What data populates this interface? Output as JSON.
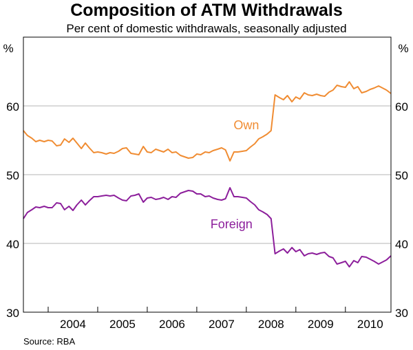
{
  "chart_data": {
    "type": "line",
    "title": "Composition of ATM Withdrawals",
    "subtitle": "Per cent of domestic withdrawals, seasonally adjusted",
    "source": "Source: RBA",
    "ylabel_left": "%",
    "ylabel_right": "%",
    "ylim": [
      30,
      70
    ],
    "yticks": [
      "30",
      "40",
      "50",
      "60"
    ],
    "xlim": [
      2003.5,
      2010.92
    ],
    "xticks": [
      "2004",
      "2005",
      "2006",
      "2007",
      "2008",
      "2009",
      "2010"
    ],
    "grid": true,
    "colors": {
      "own": "#f08c32",
      "foreign": "#8c1e9b",
      "grid": "#b4b4b4",
      "axis": "#000000"
    },
    "series": [
      {
        "name": "Own",
        "label": "Own",
        "x": [
          2003.5,
          2003.58,
          2003.67,
          2003.75,
          2003.83,
          2003.92,
          2004.0,
          2004.08,
          2004.17,
          2004.25,
          2004.33,
          2004.42,
          2004.5,
          2004.58,
          2004.67,
          2004.75,
          2004.83,
          2004.92,
          2005.0,
          2005.08,
          2005.17,
          2005.25,
          2005.33,
          2005.42,
          2005.5,
          2005.58,
          2005.67,
          2005.75,
          2005.83,
          2005.92,
          2006.0,
          2006.08,
          2006.17,
          2006.25,
          2006.33,
          2006.42,
          2006.5,
          2006.58,
          2006.67,
          2006.75,
          2006.83,
          2006.92,
          2007.0,
          2007.08,
          2007.17,
          2007.25,
          2007.33,
          2007.42,
          2007.5,
          2007.58,
          2007.67,
          2007.75,
          2007.83,
          2007.92,
          2008.0,
          2008.08,
          2008.17,
          2008.25,
          2008.33,
          2008.42,
          2008.5,
          2008.58,
          2008.67,
          2008.75,
          2008.83,
          2008.92,
          2009.0,
          2009.08,
          2009.17,
          2009.25,
          2009.33,
          2009.42,
          2009.5,
          2009.58,
          2009.67,
          2009.75,
          2009.83,
          2009.92,
          2010.0,
          2010.08,
          2010.17,
          2010.25,
          2010.33,
          2010.42,
          2010.5,
          2010.58,
          2010.67,
          2010.75,
          2010.83,
          2010.92
        ],
        "values": [
          56.4,
          55.7,
          55.3,
          54.8,
          55.0,
          54.8,
          55.0,
          54.9,
          54.2,
          54.3,
          55.2,
          54.7,
          55.3,
          54.6,
          53.8,
          54.6,
          53.9,
          53.2,
          53.3,
          53.2,
          53.0,
          53.2,
          53.1,
          53.4,
          53.8,
          53.9,
          53.1,
          53.0,
          52.9,
          54.1,
          53.3,
          53.2,
          53.7,
          53.5,
          53.3,
          53.7,
          53.2,
          53.3,
          52.8,
          52.6,
          52.4,
          52.5,
          53.0,
          52.9,
          53.3,
          53.2,
          53.5,
          53.7,
          53.9,
          53.6,
          52.0,
          53.3,
          53.3,
          53.4,
          53.5,
          54.0,
          54.5,
          55.2,
          55.5,
          55.9,
          56.4,
          61.6,
          61.2,
          60.9,
          61.5,
          60.6,
          61.3,
          61.0,
          61.9,
          61.6,
          61.5,
          61.7,
          61.5,
          61.4,
          62.0,
          62.3,
          63.0,
          62.8,
          62.7,
          63.5,
          62.5,
          62.8,
          61.9,
          62.1,
          62.4,
          62.6,
          62.9,
          62.6,
          62.3,
          61.8
        ]
      },
      {
        "name": "Foreign",
        "label": "Foreign",
        "x": [
          2003.5,
          2003.58,
          2003.67,
          2003.75,
          2003.83,
          2003.92,
          2004.0,
          2004.08,
          2004.17,
          2004.25,
          2004.33,
          2004.42,
          2004.5,
          2004.58,
          2004.67,
          2004.75,
          2004.83,
          2004.92,
          2005.0,
          2005.08,
          2005.17,
          2005.25,
          2005.33,
          2005.42,
          2005.5,
          2005.58,
          2005.67,
          2005.75,
          2005.83,
          2005.92,
          2006.0,
          2006.08,
          2006.17,
          2006.25,
          2006.33,
          2006.42,
          2006.5,
          2006.58,
          2006.67,
          2006.75,
          2006.83,
          2006.92,
          2007.0,
          2007.08,
          2007.17,
          2007.25,
          2007.33,
          2007.42,
          2007.5,
          2007.58,
          2007.67,
          2007.75,
          2007.83,
          2007.92,
          2008.0,
          2008.08,
          2008.17,
          2008.25,
          2008.33,
          2008.42,
          2008.5,
          2008.58,
          2008.67,
          2008.75,
          2008.83,
          2008.92,
          2009.0,
          2009.08,
          2009.17,
          2009.25,
          2009.33,
          2009.42,
          2009.5,
          2009.58,
          2009.67,
          2009.75,
          2009.83,
          2009.92,
          2010.0,
          2010.08,
          2010.17,
          2010.25,
          2010.33,
          2010.42,
          2010.5,
          2010.58,
          2010.67,
          2010.75,
          2010.83,
          2010.92
        ],
        "values": [
          43.6,
          44.5,
          44.9,
          45.3,
          45.2,
          45.4,
          45.2,
          45.2,
          45.9,
          45.8,
          44.9,
          45.4,
          44.8,
          45.6,
          46.3,
          45.6,
          46.2,
          46.8,
          46.8,
          46.9,
          47.0,
          46.9,
          47.0,
          46.6,
          46.3,
          46.2,
          46.9,
          47.0,
          47.2,
          46.0,
          46.6,
          46.7,
          46.4,
          46.5,
          46.7,
          46.4,
          46.8,
          46.7,
          47.3,
          47.5,
          47.7,
          47.6,
          47.2,
          47.2,
          46.8,
          46.9,
          46.6,
          46.4,
          46.3,
          46.5,
          48.1,
          46.8,
          46.8,
          46.7,
          46.6,
          46.1,
          45.6,
          44.9,
          44.6,
          44.2,
          43.6,
          38.5,
          38.9,
          39.2,
          38.6,
          39.4,
          38.8,
          39.1,
          38.2,
          38.5,
          38.6,
          38.4,
          38.6,
          38.7,
          38.1,
          37.9,
          37.0,
          37.2,
          37.4,
          36.6,
          37.5,
          37.2,
          38.1,
          38.0,
          37.7,
          37.4,
          37.0,
          37.3,
          37.6,
          38.2
        ]
      }
    ]
  }
}
